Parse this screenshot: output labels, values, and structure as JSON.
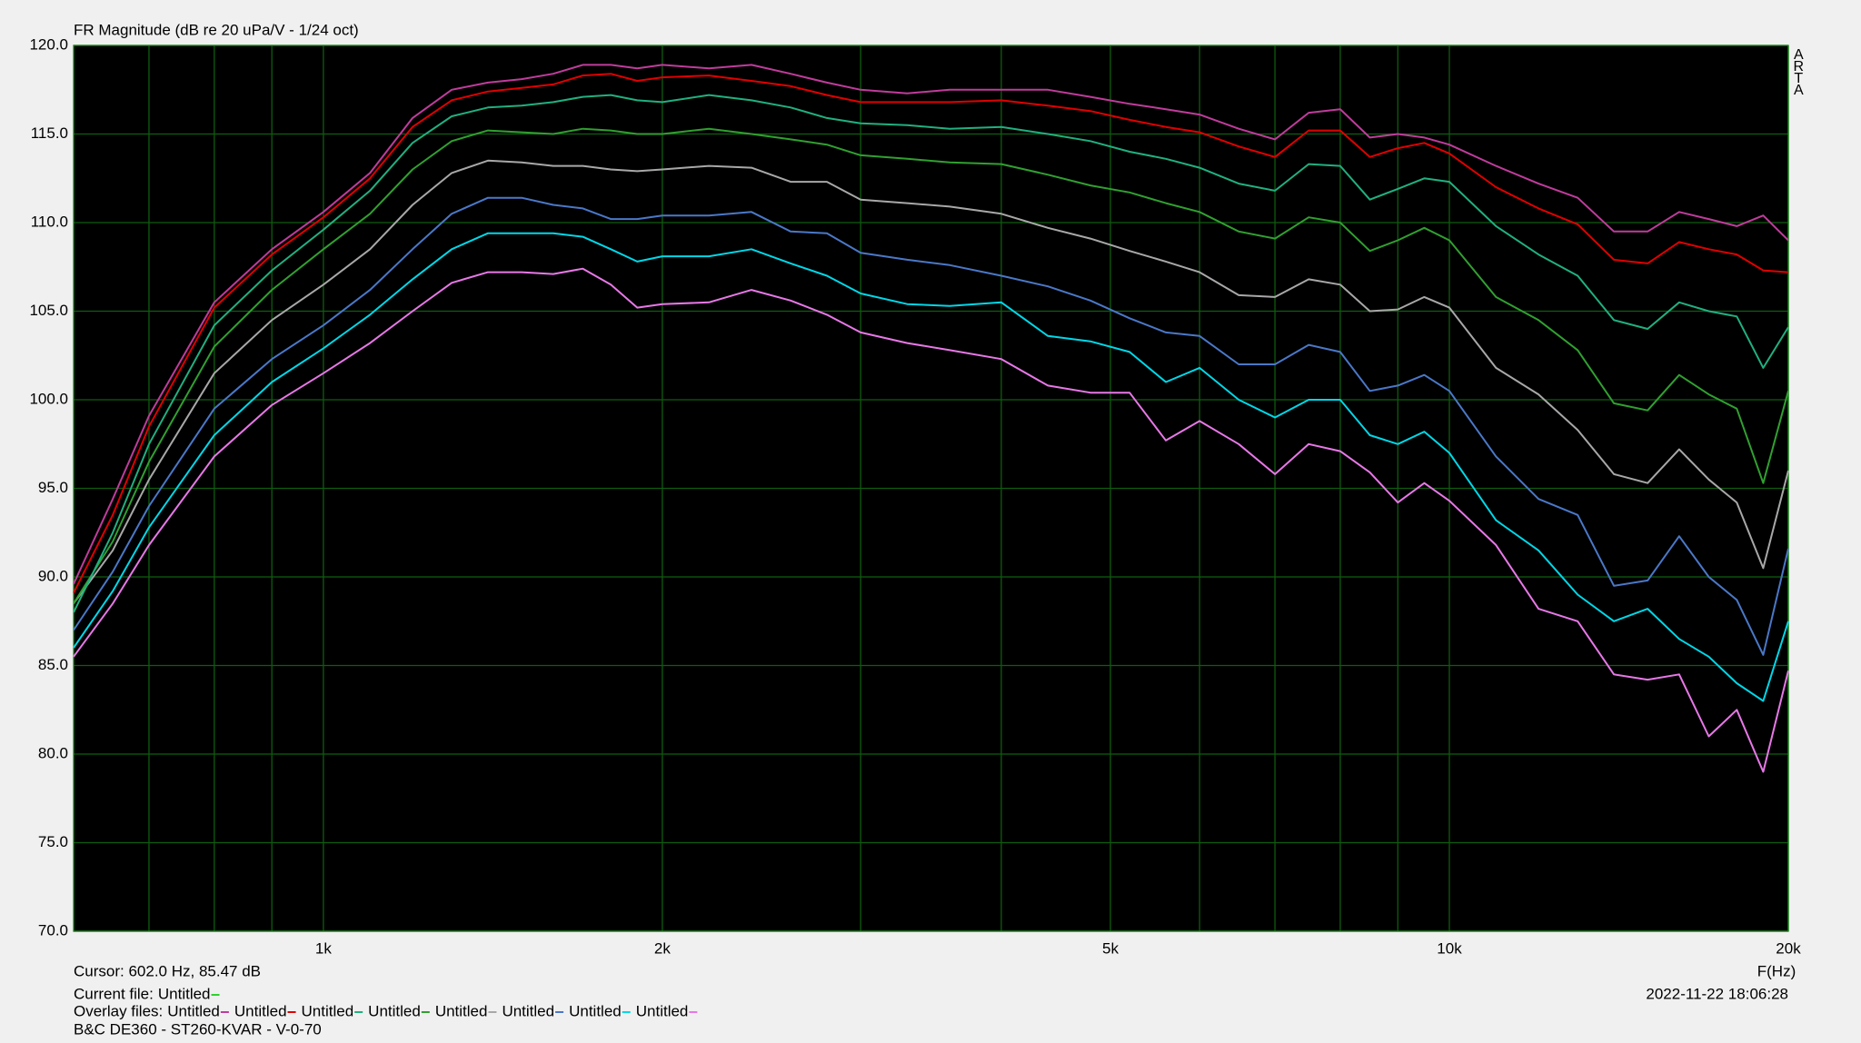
{
  "chart_data": {
    "type": "line",
    "title": "FR Magnitude (dB re 20 uPa/V - 1/24 oct)",
    "watermark": "ARTA",
    "x_label": "F(Hz)",
    "log_x": true,
    "grid": true,
    "cursor": "Cursor: 602.0 Hz, 85.47 dB",
    "current_file": {
      "label": "Current file:",
      "name": "Untitled",
      "color": "#30d030"
    },
    "overlay_label": "Overlay files:",
    "footer": "B&C DE360 - ST260-KVAR - V-0-70",
    "timestamp": "2022-11-22  18:06:28",
    "xlim": [
      600,
      20000
    ],
    "xticks": [
      {
        "value": 1000,
        "label": "1k"
      },
      {
        "value": 2000,
        "label": "2k"
      },
      {
        "value": 5000,
        "label": "5k"
      },
      {
        "value": 10000,
        "label": "10k"
      },
      {
        "value": 20000,
        "label": "20k"
      }
    ],
    "x_minor_ticks": [
      700,
      800,
      900,
      3000,
      4000,
      6000,
      7000,
      8000,
      9000
    ],
    "ylim": [
      70,
      120
    ],
    "yticks": [
      {
        "value": 70,
        "label": "70.0"
      },
      {
        "value": 75,
        "label": "75.0"
      },
      {
        "value": 80,
        "label": "80.0"
      },
      {
        "value": 85,
        "label": "85.0"
      },
      {
        "value": 90,
        "label": "90.0"
      },
      {
        "value": 95,
        "label": "95.0"
      },
      {
        "value": 100,
        "label": "100.0"
      },
      {
        "value": 105,
        "label": "105.0"
      },
      {
        "value": 110,
        "label": "110.0"
      },
      {
        "value": 115,
        "label": "115.0"
      },
      {
        "value": 120,
        "label": "120.0"
      }
    ],
    "x": [
      600,
      650,
      700,
      800,
      900,
      1000,
      1100,
      1200,
      1300,
      1400,
      1500,
      1600,
      1700,
      1800,
      1900,
      2000,
      2200,
      2400,
      2600,
      2800,
      3000,
      3300,
      3600,
      4000,
      4400,
      4800,
      5200,
      5600,
      6000,
      6500,
      7000,
      7500,
      8000,
      8500,
      9000,
      9500,
      10000,
      11000,
      12000,
      13000,
      14000,
      15000,
      16000,
      17000,
      18000,
      19000,
      20000
    ],
    "series": [
      {
        "name": "Untitled",
        "color": "#c03c9c",
        "values": [
          89.6,
          94.4,
          99.1,
          105.5,
          108.5,
          110.6,
          112.8,
          115.9,
          117.5,
          117.9,
          118.1,
          118.4,
          118.9,
          118.9,
          118.7,
          118.9,
          118.7,
          118.9,
          118.4,
          117.9,
          117.5,
          117.3,
          117.5,
          117.5,
          117.5,
          117.1,
          116.7,
          116.4,
          116.1,
          115.3,
          114.7,
          116.2,
          116.4,
          114.8,
          115.0,
          114.8,
          114.4,
          113.2,
          112.2,
          111.4,
          109.5,
          109.5,
          110.6,
          110.2,
          109.8,
          110.4,
          109.0
        ]
      },
      {
        "name": "Untitled",
        "color": "#e00000",
        "values": [
          89.1,
          93.5,
          98.5,
          105.2,
          108.2,
          110.3,
          112.5,
          115.4,
          116.9,
          117.4,
          117.6,
          117.8,
          118.3,
          118.4,
          118.0,
          118.2,
          118.3,
          118.0,
          117.7,
          117.2,
          116.8,
          116.8,
          116.8,
          116.9,
          116.6,
          116.3,
          115.8,
          115.4,
          115.1,
          114.3,
          113.7,
          115.2,
          115.2,
          113.7,
          114.2,
          114.5,
          113.9,
          112.0,
          110.8,
          109.9,
          107.9,
          107.7,
          108.9,
          108.5,
          108.2,
          107.3,
          107.2
        ]
      },
      {
        "name": "Untitled",
        "color": "#20b080",
        "values": [
          88.0,
          92.5,
          97.5,
          104.2,
          107.3,
          109.6,
          111.8,
          114.5,
          116.0,
          116.5,
          116.6,
          116.8,
          117.1,
          117.2,
          116.9,
          116.8,
          117.2,
          116.9,
          116.5,
          115.9,
          115.6,
          115.5,
          115.3,
          115.4,
          115.0,
          114.6,
          114.0,
          113.6,
          113.1,
          112.2,
          111.8,
          113.3,
          113.2,
          111.3,
          111.9,
          112.5,
          112.3,
          109.8,
          108.2,
          107.0,
          104.5,
          104.0,
          105.5,
          105.0,
          104.7,
          101.8,
          104.1
        ]
      },
      {
        "name": "Untitled",
        "color": "#30a030",
        "values": [
          88.5,
          92.0,
          96.5,
          103.0,
          106.2,
          108.5,
          110.5,
          113.0,
          114.6,
          115.2,
          115.1,
          115.0,
          115.3,
          115.2,
          115.0,
          115.0,
          115.3,
          115.0,
          114.7,
          114.4,
          113.8,
          113.6,
          113.4,
          113.3,
          112.7,
          112.1,
          111.7,
          111.1,
          110.6,
          109.5,
          109.1,
          110.3,
          110.0,
          108.4,
          109.0,
          109.7,
          109.0,
          105.8,
          104.5,
          102.8,
          99.8,
          99.4,
          101.4,
          100.3,
          99.5,
          95.3,
          100.5
        ]
      },
      {
        "name": "Untitled",
        "color": "#a8a8a8",
        "values": [
          88.5,
          91.5,
          95.5,
          101.5,
          104.5,
          106.5,
          108.5,
          111.0,
          112.8,
          113.5,
          113.4,
          113.2,
          113.2,
          113.0,
          112.9,
          113.0,
          113.2,
          113.1,
          112.3,
          112.3,
          111.3,
          111.1,
          110.9,
          110.5,
          109.7,
          109.1,
          108.4,
          107.8,
          107.2,
          105.9,
          105.8,
          106.8,
          106.5,
          105.0,
          105.1,
          105.8,
          105.2,
          101.8,
          100.3,
          98.3,
          95.8,
          95.3,
          97.2,
          95.5,
          94.2,
          90.5,
          96.0
        ]
      },
      {
        "name": "Untitled",
        "color": "#4a78c8",
        "values": [
          87.0,
          90.3,
          94.0,
          99.5,
          102.3,
          104.2,
          106.2,
          108.5,
          110.5,
          111.4,
          111.4,
          111.0,
          110.8,
          110.2,
          110.2,
          110.4,
          110.4,
          110.6,
          109.5,
          109.4,
          108.3,
          107.9,
          107.6,
          107.0,
          106.4,
          105.6,
          104.6,
          103.8,
          103.6,
          102.0,
          102.0,
          103.1,
          102.7,
          100.5,
          100.8,
          101.4,
          100.5,
          96.8,
          94.4,
          93.5,
          89.5,
          89.8,
          92.3,
          90.0,
          88.7,
          85.6,
          91.6
        ]
      },
      {
        "name": "Untitled",
        "color": "#00d8e8",
        "values": [
          86.0,
          89.2,
          92.8,
          98.0,
          101.0,
          102.9,
          104.8,
          106.8,
          108.5,
          109.4,
          109.4,
          109.4,
          109.2,
          108.5,
          107.8,
          108.1,
          108.1,
          108.5,
          107.7,
          107.0,
          106.0,
          105.4,
          105.3,
          105.5,
          103.6,
          103.3,
          102.7,
          101.0,
          101.8,
          100.0,
          99.0,
          100.0,
          100.0,
          98.0,
          97.5,
          98.2,
          97.0,
          93.2,
          91.5,
          89.0,
          87.5,
          88.2,
          86.5,
          85.5,
          84.0,
          83.0,
          87.5
        ]
      },
      {
        "name": "Untitled",
        "color": "#e878e8",
        "values": [
          85.5,
          88.5,
          91.8,
          96.8,
          99.7,
          101.5,
          103.2,
          105.0,
          106.6,
          107.2,
          107.2,
          107.1,
          107.4,
          106.5,
          105.2,
          105.4,
          105.5,
          106.2,
          105.6,
          104.8,
          103.8,
          103.2,
          102.8,
          102.3,
          100.8,
          100.4,
          100.4,
          97.7,
          98.8,
          97.5,
          95.8,
          97.5,
          97.1,
          95.9,
          94.2,
          95.3,
          94.3,
          91.8,
          88.2,
          87.5,
          84.5,
          84.2,
          84.5,
          81.0,
          82.5,
          79.0,
          84.7
        ]
      }
    ]
  }
}
